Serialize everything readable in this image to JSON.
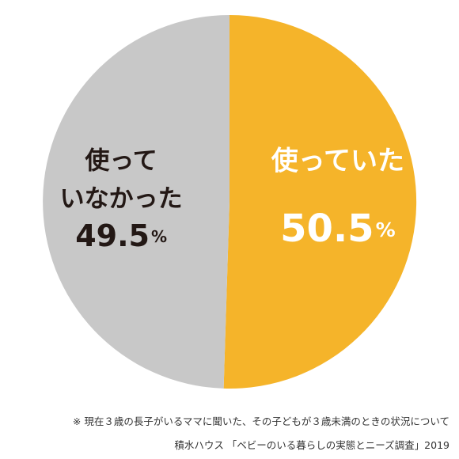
{
  "chart_data": {
    "type": "pie",
    "title": "",
    "start_angle_deg": 0,
    "direction": "clockwise",
    "slices": [
      {
        "label_lines": [
          "使っていた"
        ],
        "value": 50.5,
        "value_text": "50.5",
        "unit": "%",
        "color": "#f5b42a",
        "text_color": "#ffffff"
      },
      {
        "label_lines": [
          "使って",
          "いなかった"
        ],
        "value": 49.5,
        "value_text": "49.5",
        "unit": "%",
        "color": "#c8c8c8",
        "text_color": "#231815"
      }
    ]
  },
  "footnotes": {
    "note": "※ 現在３歳の長子がいるママに聞いた、その子どもが３歳未満のときの状況について",
    "source": "積水ハウス 「ベビーのいる暮らしの実態とニーズ調査」2019"
  }
}
